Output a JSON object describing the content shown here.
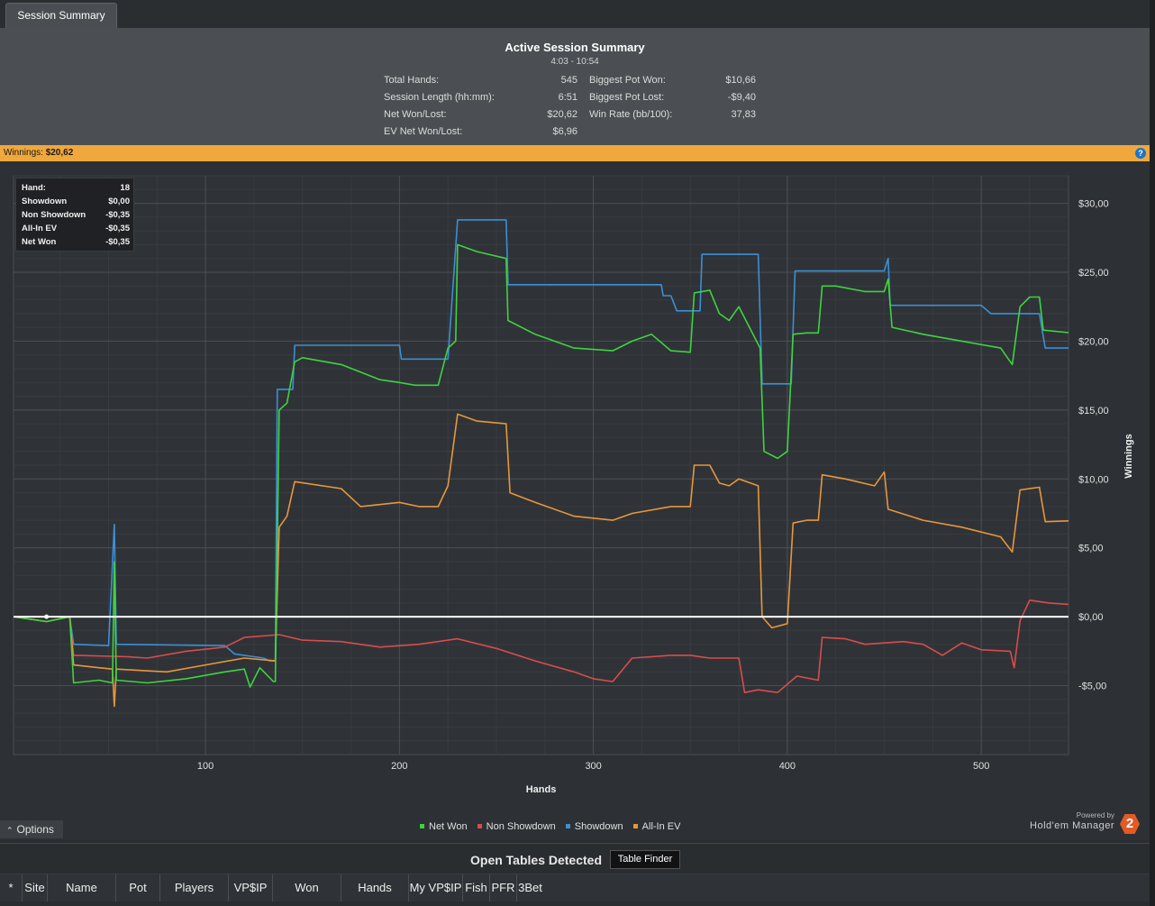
{
  "tab": {
    "label": "Session Summary"
  },
  "summary": {
    "title": "Active Session Summary",
    "time_range": "4:03 - 10:54",
    "left_stats": [
      {
        "label": "Total Hands:",
        "value": "545"
      },
      {
        "label": "Session Length (hh:mm):",
        "value": "6:51"
      },
      {
        "label": "Net Won/Lost:",
        "value": "$20,62"
      },
      {
        "label": "EV Net Won/Lost:",
        "value": "$6,96"
      }
    ],
    "right_stats": [
      {
        "label": "Biggest Pot Won:",
        "value": "$10,66"
      },
      {
        "label": "Biggest Pot Lost:",
        "value": "-$9,40"
      },
      {
        "label": "Win Rate (bb/100):",
        "value": "37,83"
      }
    ]
  },
  "winnings_bar": {
    "label": "Winnings:",
    "amount": "$20,62",
    "help": "?"
  },
  "tooltip": {
    "rows": [
      {
        "k": "Hand:",
        "v": "18"
      },
      {
        "k": "Showdown",
        "v": "$0,00"
      },
      {
        "k": "Non Showdown",
        "v": "-$0,35"
      },
      {
        "k": "All-In EV",
        "v": "-$0,35"
      },
      {
        "k": "Net Won",
        "v": "-$0,35"
      }
    ]
  },
  "options": {
    "label": "Options"
  },
  "powered": {
    "line1": "Powered by",
    "line2": "Hold'em Manager",
    "logo": "2"
  },
  "open_tables": {
    "title": "Open Tables Detected",
    "button": "Table Finder"
  },
  "columns": [
    "*",
    "Site",
    "Name",
    "Pot",
    "Players",
    "VP$IP",
    "Won",
    "Hands",
    "My VP$IP",
    "Fish",
    "PFR",
    "3Bet"
  ],
  "chart_data": {
    "type": "line",
    "xlabel": "Hands",
    "ylabel": "Winnings",
    "xlim": [
      1,
      545
    ],
    "ylim": [
      -10,
      32
    ],
    "x_ticks": [
      100,
      200,
      300,
      400,
      500
    ],
    "y_ticks": [
      {
        "v": 30,
        "label": "$30,00"
      },
      {
        "v": 25,
        "label": "$25,00"
      },
      {
        "v": 20,
        "label": "$20,00"
      },
      {
        "v": 15,
        "label": "$15,00"
      },
      {
        "v": 10,
        "label": "$10,00"
      },
      {
        "v": 5,
        "label": "$5,00"
      },
      {
        "v": 0,
        "label": "$0,00"
      },
      {
        "v": -5,
        "label": "-$5,00"
      }
    ],
    "grid": true,
    "legend_position": "bottom-center",
    "series": [
      {
        "name": "Net Won",
        "color": "#3fd33f",
        "points": [
          [
            1,
            0
          ],
          [
            18,
            -0.35
          ],
          [
            30,
            0
          ],
          [
            32,
            -4.8
          ],
          [
            45,
            -4.6
          ],
          [
            52,
            -4.8
          ],
          [
            53,
            4
          ],
          [
            54,
            -4.6
          ],
          [
            70,
            -4.8
          ],
          [
            90,
            -4.5
          ],
          [
            110,
            -4
          ],
          [
            120,
            -3.8
          ],
          [
            123,
            -5.1
          ],
          [
            128,
            -3.7
          ],
          [
            135,
            -4.7
          ],
          [
            136,
            -4.7
          ],
          [
            138,
            15
          ],
          [
            142,
            15.5
          ],
          [
            146,
            18.5
          ],
          [
            150,
            18.8
          ],
          [
            170,
            18.3
          ],
          [
            190,
            17.2
          ],
          [
            200,
            17
          ],
          [
            208,
            16.8
          ],
          [
            220,
            16.8
          ],
          [
            225,
            19.5
          ],
          [
            229,
            20
          ],
          [
            230,
            27
          ],
          [
            240,
            26.5
          ],
          [
            255,
            26
          ],
          [
            256,
            21.5
          ],
          [
            270,
            20.5
          ],
          [
            290,
            19.5
          ],
          [
            310,
            19.3
          ],
          [
            320,
            20
          ],
          [
            330,
            20.5
          ],
          [
            340,
            19.3
          ],
          [
            350,
            19.2
          ],
          [
            352,
            23.5
          ],
          [
            360,
            23.7
          ],
          [
            365,
            22
          ],
          [
            370,
            21.5
          ],
          [
            375,
            22.5
          ],
          [
            386,
            19.5
          ],
          [
            388,
            12
          ],
          [
            395,
            11.5
          ],
          [
            400,
            12
          ],
          [
            403,
            20.5
          ],
          [
            410,
            20.6
          ],
          [
            416,
            20.6
          ],
          [
            418,
            24
          ],
          [
            425,
            24
          ],
          [
            440,
            23.6
          ],
          [
            450,
            23.6
          ],
          [
            452,
            24.5
          ],
          [
            454,
            21
          ],
          [
            470,
            20.5
          ],
          [
            490,
            20
          ],
          [
            510,
            19.5
          ],
          [
            516,
            18.3
          ],
          [
            520,
            22.5
          ],
          [
            525,
            23.2
          ],
          [
            530,
            23.2
          ],
          [
            532,
            20.8
          ],
          [
            545,
            20.62
          ]
        ]
      },
      {
        "name": "Non Showdown",
        "color": "#d94c4c",
        "points": [
          [
            1,
            0
          ],
          [
            18,
            -0.35
          ],
          [
            30,
            0
          ],
          [
            32,
            -2.8
          ],
          [
            60,
            -2.9
          ],
          [
            70,
            -3
          ],
          [
            90,
            -2.5
          ],
          [
            110,
            -2.2
          ],
          [
            120,
            -1.5
          ],
          [
            138,
            -1.3
          ],
          [
            150,
            -1.7
          ],
          [
            170,
            -1.8
          ],
          [
            190,
            -2.2
          ],
          [
            210,
            -2
          ],
          [
            230,
            -1.6
          ],
          [
            250,
            -2.3
          ],
          [
            270,
            -3.2
          ],
          [
            290,
            -4
          ],
          [
            300,
            -4.5
          ],
          [
            310,
            -4.7
          ],
          [
            320,
            -3
          ],
          [
            340,
            -2.8
          ],
          [
            350,
            -2.8
          ],
          [
            360,
            -3
          ],
          [
            375,
            -3
          ],
          [
            378,
            -5.5
          ],
          [
            385,
            -5.3
          ],
          [
            395,
            -5.5
          ],
          [
            405,
            -4.3
          ],
          [
            416,
            -4.6
          ],
          [
            418,
            -1.5
          ],
          [
            430,
            -1.6
          ],
          [
            440,
            -2
          ],
          [
            460,
            -1.8
          ],
          [
            470,
            -2
          ],
          [
            480,
            -2.8
          ],
          [
            490,
            -1.9
          ],
          [
            500,
            -2.4
          ],
          [
            515,
            -2.5
          ],
          [
            517,
            -3.7
          ],
          [
            520,
            -0.3
          ],
          [
            525,
            1.2
          ],
          [
            535,
            1
          ],
          [
            545,
            0.9
          ]
        ]
      },
      {
        "name": "Showdown",
        "color": "#3b8fd6",
        "points": [
          [
            1,
            0
          ],
          [
            30,
            0
          ],
          [
            32,
            -2
          ],
          [
            50,
            -2.1
          ],
          [
            53,
            6.7
          ],
          [
            54,
            -2
          ],
          [
            110,
            -2.1
          ],
          [
            115,
            -2.7
          ],
          [
            130,
            -3
          ],
          [
            133,
            -3.2
          ],
          [
            136,
            -3.2
          ],
          [
            137,
            16.5
          ],
          [
            145,
            16.5
          ],
          [
            146,
            19.7
          ],
          [
            200,
            19.7
          ],
          [
            201,
            18.7
          ],
          [
            225,
            18.7
          ],
          [
            230,
            28.8
          ],
          [
            255,
            28.8
          ],
          [
            256,
            24.1
          ],
          [
            290,
            24.1
          ],
          [
            335,
            24.1
          ],
          [
            336,
            23.3
          ],
          [
            340,
            23.3
          ],
          [
            343,
            22.2
          ],
          [
            355,
            22.2
          ],
          [
            356,
            26.3
          ],
          [
            385,
            26.3
          ],
          [
            387,
            16.9
          ],
          [
            402,
            16.9
          ],
          [
            404,
            25.1
          ],
          [
            450,
            25.1
          ],
          [
            452,
            26
          ],
          [
            453,
            22.6
          ],
          [
            500,
            22.6
          ],
          [
            505,
            22
          ],
          [
            530,
            22
          ],
          [
            533,
            19.5
          ],
          [
            545,
            19.5
          ]
        ]
      },
      {
        "name": "All-In EV",
        "color": "#e8963c",
        "points": [
          [
            1,
            0
          ],
          [
            18,
            -0.35
          ],
          [
            30,
            0
          ],
          [
            32,
            -3.5
          ],
          [
            45,
            -3.7
          ],
          [
            52,
            -3.8
          ],
          [
            53,
            -6.5
          ],
          [
            54,
            -3.8
          ],
          [
            80,
            -4
          ],
          [
            100,
            -3.5
          ],
          [
            120,
            -3
          ],
          [
            136,
            -3.2
          ],
          [
            138,
            6.5
          ],
          [
            142,
            7.3
          ],
          [
            146,
            9.8
          ],
          [
            170,
            9.3
          ],
          [
            180,
            8
          ],
          [
            200,
            8.3
          ],
          [
            210,
            8
          ],
          [
            220,
            8
          ],
          [
            225,
            9.5
          ],
          [
            230,
            14.7
          ],
          [
            240,
            14.2
          ],
          [
            255,
            14
          ],
          [
            257,
            9
          ],
          [
            270,
            8.3
          ],
          [
            290,
            7.3
          ],
          [
            310,
            7
          ],
          [
            320,
            7.5
          ],
          [
            340,
            8
          ],
          [
            350,
            8
          ],
          [
            352,
            11
          ],
          [
            360,
            11
          ],
          [
            365,
            9.7
          ],
          [
            370,
            9.5
          ],
          [
            375,
            10
          ],
          [
            385,
            9.5
          ],
          [
            387,
            0
          ],
          [
            392,
            -0.8
          ],
          [
            400,
            -0.5
          ],
          [
            403,
            6.8
          ],
          [
            410,
            7
          ],
          [
            416,
            7
          ],
          [
            418,
            10.3
          ],
          [
            430,
            10
          ],
          [
            445,
            9.5
          ],
          [
            450,
            10.5
          ],
          [
            452,
            7.8
          ],
          [
            470,
            7
          ],
          [
            490,
            6.5
          ],
          [
            510,
            5.8
          ],
          [
            516,
            4.7
          ],
          [
            520,
            9.2
          ],
          [
            530,
            9.4
          ],
          [
            533,
            6.9
          ],
          [
            545,
            6.96
          ]
        ]
      }
    ]
  }
}
